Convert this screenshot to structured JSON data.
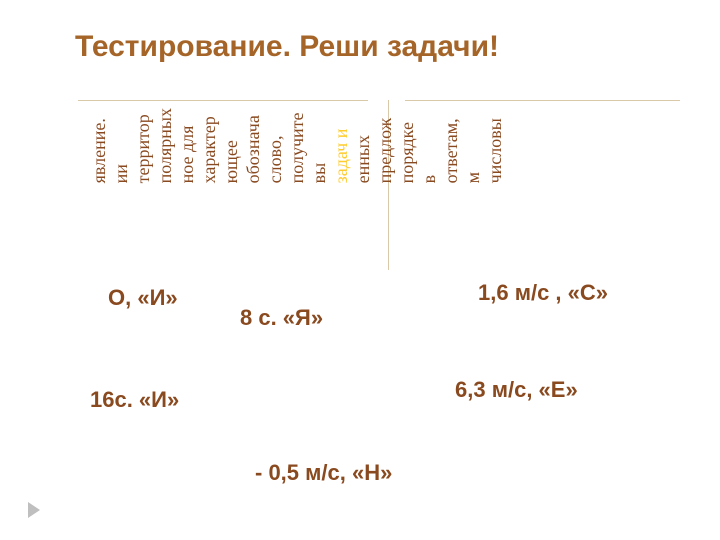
{
  "title": "Тестирование. Реши задачи!",
  "vertical_words": [
    {
      "text": "числовы",
      "color": "#8a4a20"
    },
    {
      "text": "м",
      "color": "#8a4a20"
    },
    {
      "text": "ответам,",
      "color": "#8a4a20"
    },
    {
      "text": "в",
      "color": "#8a4a20"
    },
    {
      "text": "порядке",
      "color": "#8a4a20"
    },
    {
      "text": "предлож",
      "color": "#8a4a20"
    },
    {
      "text": "енных",
      "color": "#8a4a20"
    },
    {
      "text": "задач и",
      "color": "#ffcc2f"
    },
    {
      "text": "вы",
      "color": "#8a4a20"
    },
    {
      "text": "получите",
      "color": "#8a4a20"
    },
    {
      "text": "слово,",
      "color": "#8a4a20"
    },
    {
      "text": "обознача",
      "color": "#8a4a20"
    },
    {
      "text": "ющее",
      "color": "#8a4a20"
    },
    {
      "text": "характер",
      "color": "#8a4a20"
    },
    {
      "text": "ное для",
      "color": "#8a4a20"
    },
    {
      "text": "полярных",
      "color": "#8a4a20"
    },
    {
      "text": "территор",
      "color": "#8a4a20"
    },
    {
      "text": "ии",
      "color": "#8a4a20"
    },
    {
      "text": "явление.",
      "color": "#8a4a20"
    }
  ],
  "answers": {
    "a1": "О,  «И»",
    "a2": "8 с.  «Я»",
    "a3": "1,6 м/с , «С»",
    "a4": "16с. «И»",
    "a5": "6,3 м/с, «Е»",
    "a6": "- 0,5 м/с,  «Н»"
  },
  "colors": {
    "title_color": "#a56428",
    "text_color": "#8a4a20",
    "highlight_color": "#ffcc2f"
  }
}
